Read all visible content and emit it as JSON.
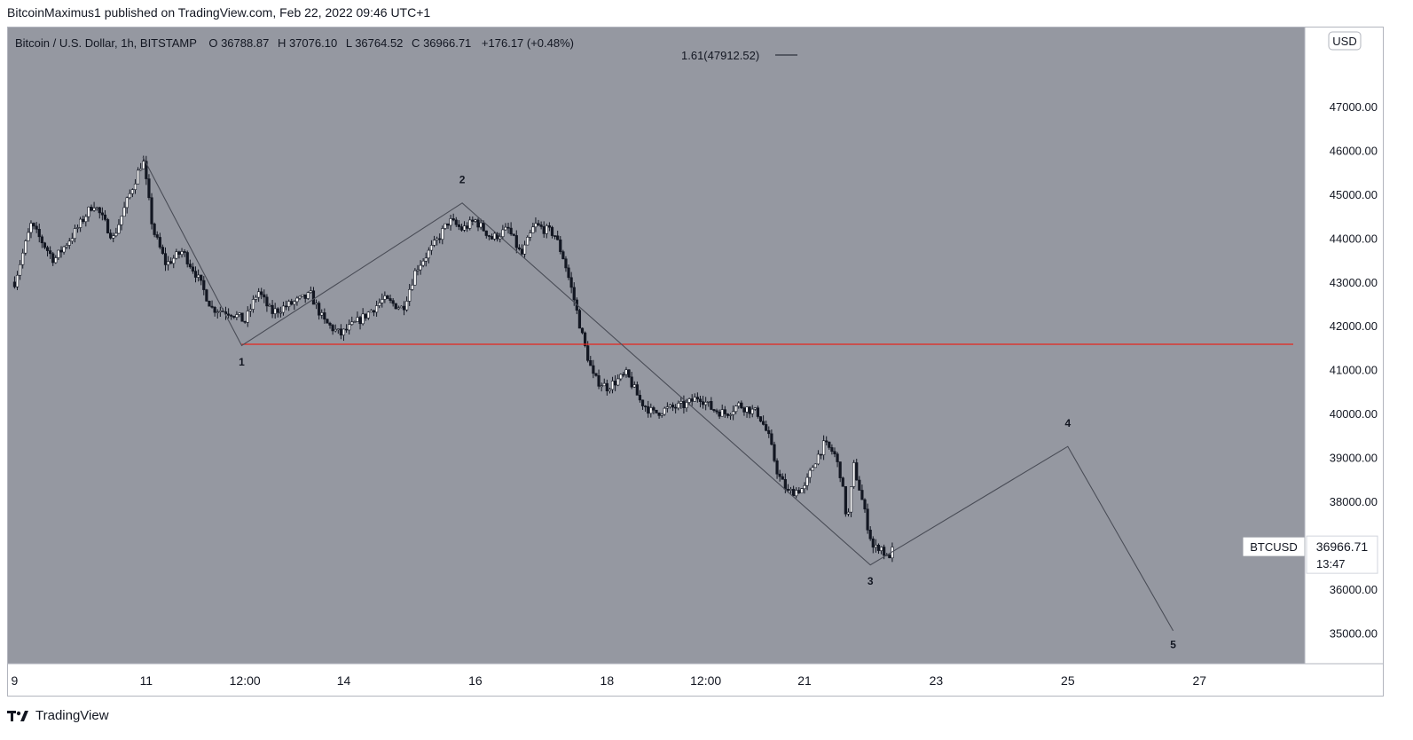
{
  "header": {
    "published_by": "BitcoinMaximus1 published on TradingView.com, Feb 22, 2022 09:46 UTC+1"
  },
  "legend": {
    "symbol": "Bitcoin / U.S. Dollar, 1h, BITSTAMP",
    "o_label": "O",
    "o_value": "36788.87",
    "h_label": "H",
    "h_value": "37076.10",
    "l_label": "L",
    "l_value": "36764.52",
    "c_label": "C",
    "c_value": "36966.71",
    "change": "+176.17 (+0.48%)"
  },
  "currency_button": "USD",
  "fib_label": "1.61(47912.52)",
  "price_tag": {
    "symbol": "BTCUSD",
    "price": "36966.71",
    "countdown": "13:47"
  },
  "footer": {
    "brand": "TradingView"
  },
  "colors": {
    "plot_bg": "#9598a1",
    "candle": "#131722",
    "wave_line": "#4a4d57",
    "support_line": "#e8261c",
    "axis_bg": "#ffffff"
  },
  "chart_data": {
    "type": "candlestick",
    "title": "Bitcoin / U.S. Dollar, 1h, BITSTAMP",
    "ylim": [
      34300,
      48800
    ],
    "y_ticks": [
      "47000.00",
      "46000.00",
      "45000.00",
      "44000.00",
      "43000.00",
      "42000.00",
      "41000.00",
      "40000.00",
      "39000.00",
      "38000.00",
      "37000.00",
      "36000.00",
      "35000.00"
    ],
    "x_ticks": [
      "9",
      "11",
      "12:00",
      "14",
      "16",
      "18",
      "12:00",
      "21",
      "23",
      "25",
      "27"
    ],
    "x_tick_days": [
      9,
      11,
      12.5,
      14,
      16,
      18,
      19.5,
      21,
      23,
      25,
      27
    ],
    "xlim": [
      8.9,
      28.6
    ],
    "price_path": [
      [
        9.0,
        43000
      ],
      [
        9.25,
        44300
      ],
      [
        9.6,
        43500
      ],
      [
        9.9,
        44100
      ],
      [
        10.2,
        44800
      ],
      [
        10.5,
        44000
      ],
      [
        10.8,
        45200
      ],
      [
        10.95,
        45800
      ],
      [
        11.1,
        44200
      ],
      [
        11.3,
        43400
      ],
      [
        11.55,
        43700
      ],
      [
        11.75,
        43200
      ],
      [
        12.0,
        42400
      ],
      [
        12.3,
        42300
      ],
      [
        12.5,
        42100
      ],
      [
        12.7,
        42800
      ],
      [
        12.9,
        42300
      ],
      [
        13.2,
        42500
      ],
      [
        13.5,
        42700
      ],
      [
        13.7,
        42100
      ],
      [
        13.95,
        41800
      ],
      [
        14.3,
        42200
      ],
      [
        14.6,
        42600
      ],
      [
        14.9,
        42400
      ],
      [
        15.1,
        43300
      ],
      [
        15.4,
        43900
      ],
      [
        15.6,
        44400
      ],
      [
        15.8,
        44200
      ],
      [
        16.0,
        44400
      ],
      [
        16.25,
        44000
      ],
      [
        16.5,
        44200
      ],
      [
        16.7,
        43600
      ],
      [
        16.9,
        44300
      ],
      [
        17.2,
        44100
      ],
      [
        17.35,
        43500
      ],
      [
        17.5,
        42600
      ],
      [
        17.65,
        41600
      ],
      [
        17.8,
        40800
      ],
      [
        18.0,
        40600
      ],
      [
        18.3,
        40900
      ],
      [
        18.5,
        40300
      ],
      [
        18.7,
        40000
      ],
      [
        18.9,
        40100
      ],
      [
        19.2,
        40200
      ],
      [
        19.4,
        40400
      ],
      [
        19.6,
        40100
      ],
      [
        19.8,
        40000
      ],
      [
        20.0,
        40200
      ],
      [
        20.3,
        40000
      ],
      [
        20.45,
        39500
      ],
      [
        20.6,
        38600
      ],
      [
        20.75,
        38200
      ],
      [
        21.0,
        38300
      ],
      [
        21.15,
        38900
      ],
      [
        21.3,
        39300
      ],
      [
        21.45,
        39100
      ],
      [
        21.55,
        38600
      ],
      [
        21.65,
        37500
      ],
      [
        21.75,
        38800
      ],
      [
        21.85,
        38200
      ],
      [
        21.95,
        37500
      ],
      [
        22.05,
        36900
      ],
      [
        22.15,
        37000
      ],
      [
        22.25,
        36700
      ],
      [
        22.35,
        36900
      ]
    ],
    "wave_path": [
      {
        "day": 10.95,
        "price": 45850
      },
      {
        "day": 12.45,
        "price": 41550
      },
      {
        "day": 15.8,
        "price": 44800
      },
      {
        "day": 22.0,
        "price": 36550
      },
      {
        "day": 25.0,
        "price": 39250
      },
      {
        "day": 26.6,
        "price": 35050
      }
    ],
    "wave_labels": [
      {
        "text": "1",
        "day": 12.45,
        "price": 41100
      },
      {
        "text": "2",
        "day": 15.8,
        "price": 45250
      },
      {
        "text": "3",
        "day": 22.0,
        "price": 36100
      },
      {
        "text": "4",
        "day": 25.0,
        "price": 39700
      },
      {
        "text": "5",
        "day": 26.6,
        "price": 34650
      }
    ],
    "support_level": 41580,
    "support_start_day": 12.45,
    "fib_level": 47912.52,
    "last_price": 36966.71
  }
}
